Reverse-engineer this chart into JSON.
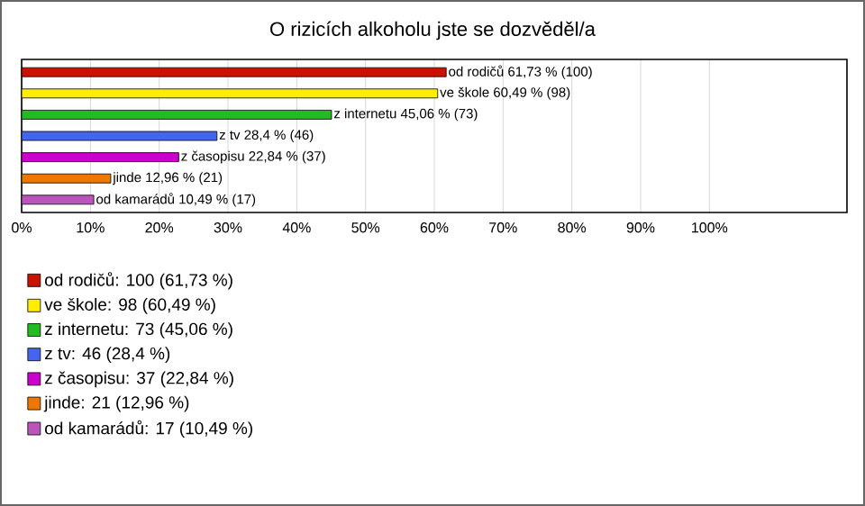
{
  "chart_data": {
    "type": "bar",
    "orientation": "horizontal",
    "title": "O rizicích alkoholu jste se dozvěděl/a",
    "categories": [
      null,
      null,
      null,
      null,
      null,
      null,
      null
    ],
    "xlim": [
      0,
      120
    ],
    "xticks": [
      {
        "value": 0,
        "label": "0%"
      },
      {
        "value": 10,
        "label": "10%"
      },
      {
        "value": 20,
        "label": "20%"
      },
      {
        "value": 30,
        "label": "30%"
      },
      {
        "value": 40,
        "label": "40%"
      },
      {
        "value": 50,
        "label": "50%"
      },
      {
        "value": 60,
        "label": "60%"
      },
      {
        "value": 70,
        "label": "70%"
      },
      {
        "value": 80,
        "label": "80%"
      },
      {
        "value": 90,
        "label": "90%"
      },
      {
        "value": 100,
        "label": "100%"
      }
    ],
    "grid": "x",
    "legend": "bottom",
    "series": [
      {
        "name": "od rodičů: 100 (61,73 %)",
        "color": "#cc1100",
        "values": [
          61.73,
          null,
          null,
          null,
          null,
          null,
          null
        ],
        "value_labels": [
          "od rodičů 61,73 % (100)",
          null,
          null,
          null,
          null,
          null,
          null
        ]
      },
      {
        "name": "ve škole: 98 (60,49 %)",
        "color": "#ffee00",
        "values": [
          null,
          60.49,
          null,
          null,
          null,
          null,
          null
        ],
        "value_labels": [
          null,
          "ve škole 60,49 % (98)",
          null,
          null,
          null,
          null,
          null
        ]
      },
      {
        "name": "z internetu: 73 (45,06 %)",
        "color": "#22bb22",
        "values": [
          null,
          null,
          45.06,
          null,
          null,
          null,
          null
        ],
        "value_labels": [
          null,
          null,
          "z internetu 45,06 % (73)",
          null,
          null,
          null,
          null
        ]
      },
      {
        "name": "z tv: 46 (28,4 %)",
        "color": "#4466ee",
        "values": [
          null,
          null,
          null,
          28.4,
          null,
          null,
          null
        ],
        "value_labels": [
          null,
          null,
          null,
          "z tv 28,4 % (46)",
          null,
          null,
          null
        ]
      },
      {
        "name": "z časopisu: 37 (22,84 %)",
        "color": "#cc00cc",
        "values": [
          null,
          null,
          null,
          null,
          22.84,
          null,
          null
        ],
        "value_labels": [
          null,
          null,
          null,
          null,
          "z časopisu 22,84 % (37)",
          null,
          null
        ]
      },
      {
        "name": "jinde: 21 (12,96 %)",
        "color": "#ee7700",
        "values": [
          null,
          null,
          null,
          null,
          null,
          12.96,
          null
        ],
        "value_labels": [
          null,
          null,
          null,
          null,
          null,
          "jinde 12,96 % (21)",
          null
        ]
      },
      {
        "name": "od kamarádů: 17 (10,49 %)",
        "color": "#bb55bb",
        "values": [
          null,
          null,
          null,
          null,
          null,
          null,
          10.49
        ],
        "value_labels": [
          null,
          null,
          null,
          null,
          null,
          null,
          "od kamarádů 10,49 % (17)"
        ]
      }
    ]
  }
}
